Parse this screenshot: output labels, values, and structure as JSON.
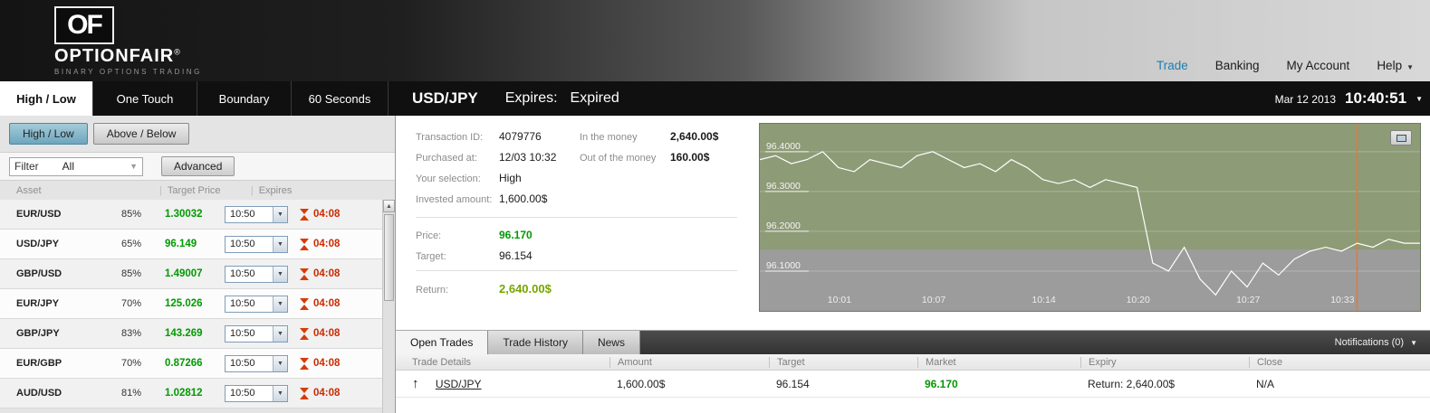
{
  "brand": {
    "badge": "OF",
    "name": "OPTIONFAIR",
    "reg": "®",
    "tagline": "BINARY OPTIONS TRADING"
  },
  "top_nav": {
    "items": [
      {
        "label": "Trade",
        "active": true
      },
      {
        "label": "Banking",
        "active": false
      },
      {
        "label": "My Account",
        "active": false
      },
      {
        "label": "Help",
        "active": false
      }
    ]
  },
  "main_tabs": {
    "items": [
      {
        "label": "High / Low",
        "active": true
      },
      {
        "label": "One Touch",
        "active": false
      },
      {
        "label": "Boundary",
        "active": false
      },
      {
        "label": "60 Seconds",
        "active": false
      }
    ]
  },
  "title_bar": {
    "pair": "USD/JPY",
    "expires_label": "Expires:",
    "expires_value": "Expired",
    "date": "Mar 12 2013",
    "time": "10:40:51"
  },
  "left_panel": {
    "sub_tabs": [
      {
        "label": "High / Low",
        "active": true
      },
      {
        "label": "Above / Below",
        "active": false
      }
    ],
    "filter": {
      "label": "Filter",
      "value": "All",
      "advanced": "Advanced"
    },
    "columns": [
      "Asset",
      "Target Price",
      "Expires"
    ],
    "assets": [
      {
        "name": "EUR/USD",
        "payout": "85%",
        "price": "1.30032",
        "expiry": "10:50",
        "countdown": "04:08"
      },
      {
        "name": "USD/JPY",
        "payout": "65%",
        "price": "96.149",
        "expiry": "10:50",
        "countdown": "04:08"
      },
      {
        "name": "GBP/USD",
        "payout": "85%",
        "price": "1.49007",
        "expiry": "10:50",
        "countdown": "04:08"
      },
      {
        "name": "EUR/JPY",
        "payout": "70%",
        "price": "125.026",
        "expiry": "10:50",
        "countdown": "04:08"
      },
      {
        "name": "GBP/JPY",
        "payout": "83%",
        "price": "143.269",
        "expiry": "10:50",
        "countdown": "04:08"
      },
      {
        "name": "EUR/GBP",
        "payout": "70%",
        "price": "0.87266",
        "expiry": "10:50",
        "countdown": "04:08"
      },
      {
        "name": "AUD/USD",
        "payout": "81%",
        "price": "1.02812",
        "expiry": "10:50",
        "countdown": "04:08"
      }
    ]
  },
  "trade_details": {
    "transaction_id_label": "Transaction ID:",
    "transaction_id": "4079776",
    "purchased_label": "Purchased at:",
    "purchased": "12/03 10:32",
    "selection_label": "Your selection:",
    "selection": "High",
    "invested_label": "Invested amount:",
    "invested": "1,600.00$",
    "in_money_label": "In the money",
    "in_money": "2,640.00$",
    "out_money_label": "Out of the money",
    "out_money": "160.00$",
    "price_label": "Price:",
    "price": "96.170",
    "target_label": "Target:",
    "target": "96.154",
    "return_label": "Return:",
    "return": "2,640.00$"
  },
  "chart_data": {
    "type": "line",
    "title": "USD/JPY intraday price",
    "x_start": "09:56",
    "x_end": "10:38",
    "ylim": [
      96.0,
      96.47
    ],
    "y_ticks": [
      96.4,
      96.3,
      96.2,
      96.1
    ],
    "y_tick_labels": [
      "96.4000",
      "96.3000",
      "96.2000",
      "96.1000"
    ],
    "x_tick_labels": [
      "10:01",
      "10:07",
      "10:14",
      "10:20",
      "10:27",
      "10:33"
    ],
    "target_level": 96.154,
    "marker_time": "10:34",
    "zone_above_color": "#8e9b77",
    "zone_below_color": "#9c9c9c",
    "line_color": "#ffffff",
    "marker_color": "#e07b39",
    "points": [
      [
        "09:56",
        96.38
      ],
      [
        "09:57",
        96.39
      ],
      [
        "09:58",
        96.37
      ],
      [
        "09:59",
        96.38
      ],
      [
        "10:00",
        96.4
      ],
      [
        "10:01",
        96.36
      ],
      [
        "10:02",
        96.35
      ],
      [
        "10:03",
        96.38
      ],
      [
        "10:04",
        96.37
      ],
      [
        "10:05",
        96.36
      ],
      [
        "10:06",
        96.39
      ],
      [
        "10:07",
        96.4
      ],
      [
        "10:08",
        96.38
      ],
      [
        "10:09",
        96.36
      ],
      [
        "10:10",
        96.37
      ],
      [
        "10:11",
        96.35
      ],
      [
        "10:12",
        96.38
      ],
      [
        "10:13",
        96.36
      ],
      [
        "10:14",
        96.33
      ],
      [
        "10:15",
        96.32
      ],
      [
        "10:16",
        96.33
      ],
      [
        "10:17",
        96.31
      ],
      [
        "10:18",
        96.33
      ],
      [
        "10:19",
        96.32
      ],
      [
        "10:20",
        96.31
      ],
      [
        "10:21",
        96.12
      ],
      [
        "10:22",
        96.1
      ],
      [
        "10:23",
        96.16
      ],
      [
        "10:24",
        96.08
      ],
      [
        "10:25",
        96.04
      ],
      [
        "10:26",
        96.1
      ],
      [
        "10:27",
        96.06
      ],
      [
        "10:28",
        96.12
      ],
      [
        "10:29",
        96.09
      ],
      [
        "10:30",
        96.13
      ],
      [
        "10:31",
        96.15
      ],
      [
        "10:32",
        96.16
      ],
      [
        "10:33",
        96.15
      ],
      [
        "10:34",
        96.17
      ],
      [
        "10:35",
        96.16
      ],
      [
        "10:36",
        96.18
      ],
      [
        "10:37",
        96.17
      ],
      [
        "10:38",
        96.17
      ]
    ]
  },
  "bottom_panel": {
    "tabs": [
      {
        "label": "Open Trades",
        "active": true
      },
      {
        "label": "Trade History",
        "active": false
      },
      {
        "label": "News",
        "active": false
      }
    ],
    "notifications": "Notifications (0)",
    "columns": [
      "Trade Details",
      "Amount",
      "Target",
      "Market",
      "Expiry",
      "Close"
    ],
    "trades": [
      {
        "direction": "up",
        "asset": "USD/JPY",
        "amount": "1,600.00$",
        "target": "96.154",
        "market": "96.170",
        "expiry": "Return: 2,640.00$",
        "close": "N/A"
      }
    ]
  }
}
